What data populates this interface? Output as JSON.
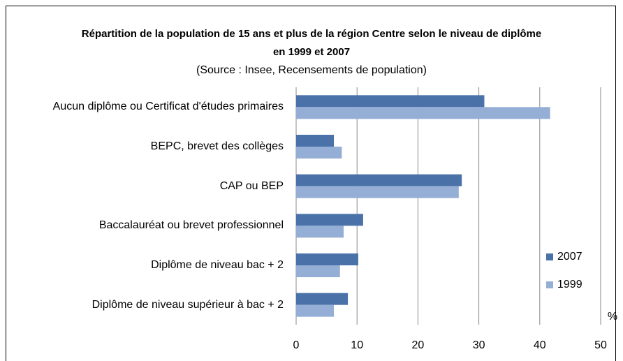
{
  "chart_data": {
    "type": "hbar",
    "title": "Répartition de la population de 15 ans et plus de la région Centre selon le niveau de diplôme en 1999 et 2007",
    "subtitle": "(Source : Insee, Recensements de population)",
    "x_label": "%",
    "categories": [
      "Aucun diplôme ou Certificat d'études primaires",
      "BEPC, brevet des collèges",
      "CAP ou BEP",
      "Baccalauréat ou brevet professionnel",
      "Diplôme de niveau bac + 2",
      "Diplôme de niveau supérieur à bac + 2"
    ],
    "series": [
      {
        "name": "2007",
        "color": "#4a72a8",
        "values": [
          30.9,
          6.2,
          27.2,
          11.0,
          10.2,
          8.5
        ]
      },
      {
        "name": "1999",
        "color": "#95aed5",
        "values": [
          41.7,
          7.5,
          26.7,
          7.8,
          7.2,
          6.2
        ]
      }
    ],
    "xlim": [
      0,
      50
    ],
    "xticks": [
      0,
      10,
      20,
      30,
      40,
      50
    ],
    "grid": true,
    "legend": "right"
  }
}
